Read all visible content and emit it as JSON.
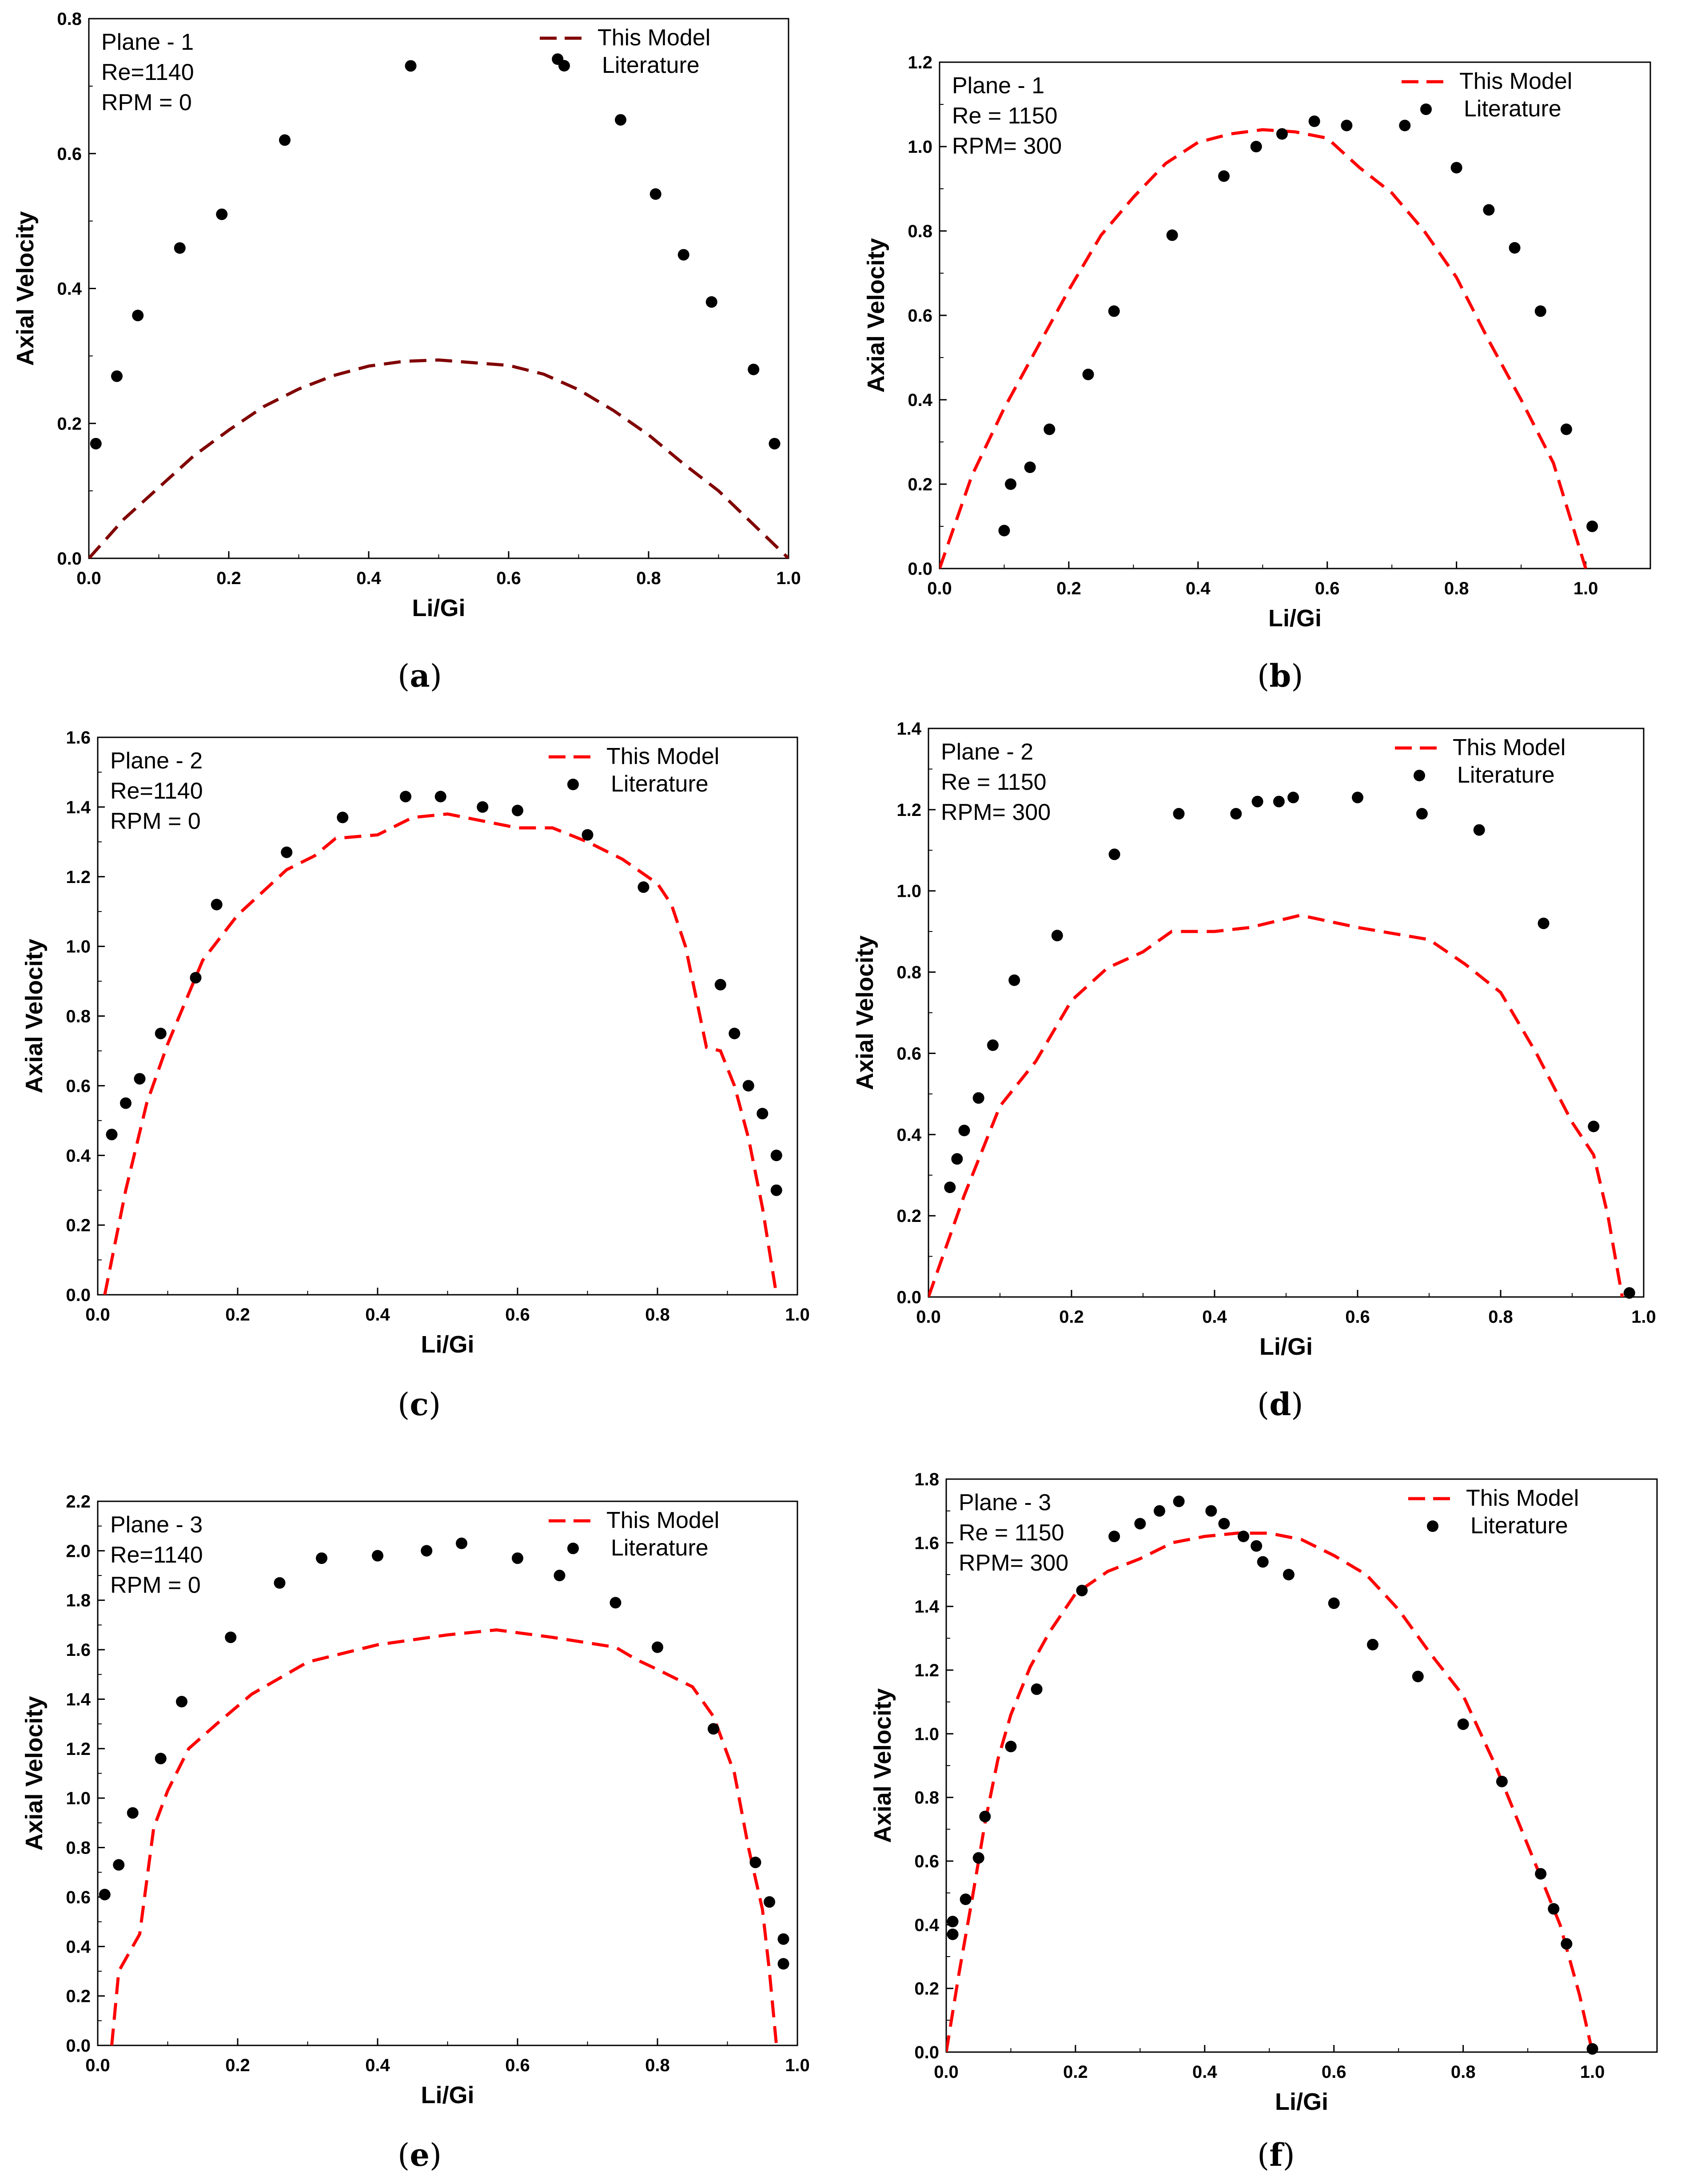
{
  "chart_data": [
    {
      "id": "a",
      "type": "scatter+line",
      "caption": "a",
      "annotation": [
        "Plane - 1",
        "Re=1140",
        "RPM = 0"
      ],
      "xlabel": "Li/Gi",
      "ylabel": "Axial Velocity",
      "xlim": [
        0,
        1.0
      ],
      "ylim": [
        0,
        0.8
      ],
      "xticks": [
        "0.0",
        "0.2",
        "0.4",
        "0.6",
        "0.8",
        "1.0"
      ],
      "yticks": [
        "0.0",
        "0.2",
        "0.4",
        "0.6",
        "0.8"
      ],
      "model_color": "#800000",
      "series": [
        {
          "name": "This Model",
          "kind": "dashed-line",
          "x": [
            0.0,
            0.05,
            0.1,
            0.15,
            0.2,
            0.25,
            0.3,
            0.35,
            0.4,
            0.45,
            0.5,
            0.55,
            0.6,
            0.65,
            0.7,
            0.75,
            0.8,
            0.85,
            0.9,
            0.95,
            1.0
          ],
          "y": [
            0.0,
            0.058,
            0.105,
            0.152,
            0.19,
            0.225,
            0.251,
            0.271,
            0.285,
            0.292,
            0.294,
            0.29,
            0.286,
            0.273,
            0.25,
            0.219,
            0.183,
            0.14,
            0.1,
            0.05,
            0.0
          ]
        },
        {
          "name": "Literature",
          "kind": "points",
          "x": [
            0.01,
            0.04,
            0.07,
            0.13,
            0.19,
            0.28,
            0.46,
            0.67,
            0.76,
            0.81,
            0.85,
            0.89,
            0.95,
            0.98
          ],
          "y": [
            0.17,
            0.27,
            0.36,
            0.46,
            0.51,
            0.62,
            0.73,
            0.74,
            0.65,
            0.54,
            0.45,
            0.38,
            0.28,
            0.17
          ]
        }
      ]
    },
    {
      "id": "b",
      "type": "scatter+line",
      "caption": "b",
      "annotation": [
        "Plane - 1",
        "Re = 1150",
        "RPM= 300"
      ],
      "xlabel": "Li/Gi",
      "ylabel": "Axial Velocity",
      "xlim": [
        0,
        1.1
      ],
      "ylim": [
        0,
        1.2
      ],
      "xticks": [
        "0.0",
        "0.2",
        "0.4",
        "0.6",
        "0.8",
        "1.0"
      ],
      "yticks": [
        "0.0",
        "0.2",
        "0.4",
        "0.6",
        "0.8",
        "1.0",
        "1.2"
      ],
      "model_color": "#ff0000",
      "series": [
        {
          "name": "This Model",
          "kind": "dashed-line",
          "x": [
            0.0,
            0.05,
            0.1,
            0.15,
            0.2,
            0.25,
            0.3,
            0.35,
            0.4,
            0.45,
            0.5,
            0.55,
            0.6,
            0.65,
            0.7,
            0.75,
            0.8,
            0.85,
            0.9,
            0.95,
            1.0
          ],
          "y": [
            0.0,
            0.22,
            0.38,
            0.52,
            0.66,
            0.79,
            0.88,
            0.96,
            1.01,
            1.03,
            1.04,
            1.035,
            1.02,
            0.95,
            0.89,
            0.8,
            0.69,
            0.54,
            0.4,
            0.25,
            0.0
          ]
        },
        {
          "name": "Literature",
          "kind": "points",
          "x": [
            0.1,
            0.11,
            0.14,
            0.17,
            0.23,
            0.27,
            0.36,
            0.44,
            0.49,
            0.53,
            0.58,
            0.63,
            0.72,
            0.8,
            0.85,
            0.89,
            0.93,
            0.97,
            1.01
          ],
          "y": [
            0.09,
            0.2,
            0.24,
            0.33,
            0.46,
            0.61,
            0.79,
            0.93,
            1.0,
            1.03,
            1.06,
            1.05,
            1.05,
            0.95,
            0.85,
            0.76,
            0.61,
            0.33,
            0.1
          ]
        }
      ]
    },
    {
      "id": "c",
      "type": "scatter+line",
      "caption": "c",
      "annotation": [
        "Plane - 2",
        "Re=1140",
        "RPM = 0"
      ],
      "xlabel": "Li/Gi",
      "ylabel": "Axial Velocity",
      "xlim": [
        0,
        1.0
      ],
      "ylim": [
        0,
        1.6
      ],
      "xticks": [
        "0.0",
        "0.2",
        "0.4",
        "0.6",
        "0.8",
        "1.0"
      ],
      "yticks": [
        "0.0",
        "0.2",
        "0.4",
        "0.6",
        "0.8",
        "1.0",
        "1.2",
        "1.4",
        "1.6"
      ],
      "model_color": "#ff0000",
      "series": [
        {
          "name": "This Model",
          "kind": "dashed-line",
          "x": [
            0.01,
            0.04,
            0.07,
            0.1,
            0.15,
            0.2,
            0.27,
            0.31,
            0.34,
            0.4,
            0.45,
            0.5,
            0.55,
            0.6,
            0.65,
            0.7,
            0.75,
            0.8,
            0.82,
            0.84,
            0.87,
            0.89,
            0.91,
            0.93,
            0.95,
            0.97
          ],
          "y": [
            0.0,
            0.3,
            0.55,
            0.72,
            0.96,
            1.09,
            1.22,
            1.26,
            1.31,
            1.32,
            1.37,
            1.38,
            1.36,
            1.34,
            1.34,
            1.3,
            1.25,
            1.18,
            1.12,
            1.0,
            0.71,
            0.7,
            0.6,
            0.45,
            0.25,
            0.0
          ]
        },
        {
          "name": "Literature",
          "kind": "points",
          "x": [
            0.02,
            0.04,
            0.06,
            0.09,
            0.14,
            0.17,
            0.27,
            0.35,
            0.44,
            0.49,
            0.55,
            0.6,
            0.7,
            0.78,
            0.89,
            0.91,
            0.93,
            0.95,
            0.97,
            0.97
          ],
          "y": [
            0.46,
            0.55,
            0.62,
            0.75,
            0.91,
            1.12,
            1.27,
            1.37,
            1.43,
            1.43,
            1.4,
            1.39,
            1.32,
            1.17,
            0.89,
            0.75,
            0.6,
            0.52,
            0.4,
            0.3
          ]
        }
      ]
    },
    {
      "id": "d",
      "type": "scatter+line",
      "caption": "d",
      "annotation": [
        "Plane - 2",
        "Re = 1150",
        "RPM= 300"
      ],
      "xlabel": "Li/Gi",
      "ylabel": "Axial Velocity",
      "xlim": [
        0,
        1.0
      ],
      "ylim": [
        0,
        1.4
      ],
      "xticks": [
        "0.0",
        "0.2",
        "0.4",
        "0.6",
        "0.8",
        "1.0"
      ],
      "yticks": [
        "0.0",
        "0.2",
        "0.4",
        "0.6",
        "0.8",
        "1.0",
        "1.2",
        "1.4"
      ],
      "model_color": "#ff0000",
      "series": [
        {
          "name": "This Model",
          "kind": "dashed-line",
          "x": [
            0.0,
            0.05,
            0.1,
            0.15,
            0.2,
            0.25,
            0.3,
            0.34,
            0.4,
            0.45,
            0.52,
            0.6,
            0.7,
            0.75,
            0.8,
            0.85,
            0.9,
            0.93,
            0.95,
            0.97
          ],
          "y": [
            0.0,
            0.25,
            0.47,
            0.58,
            0.73,
            0.81,
            0.85,
            0.9,
            0.9,
            0.91,
            0.94,
            0.91,
            0.88,
            0.82,
            0.75,
            0.6,
            0.43,
            0.35,
            0.2,
            0.0
          ]
        },
        {
          "name": "Literature",
          "kind": "points",
          "x": [
            0.03,
            0.04,
            0.05,
            0.07,
            0.09,
            0.12,
            0.18,
            0.26,
            0.35,
            0.43,
            0.46,
            0.49,
            0.51,
            0.6,
            0.69,
            0.77,
            0.86,
            0.93,
            0.98
          ],
          "y": [
            0.27,
            0.34,
            0.41,
            0.49,
            0.62,
            0.78,
            0.89,
            1.09,
            1.19,
            1.19,
            1.22,
            1.22,
            1.23,
            1.23,
            1.19,
            1.15,
            0.92,
            0.42,
            0.01
          ]
        }
      ]
    },
    {
      "id": "e",
      "type": "scatter+line",
      "caption": "e",
      "annotation": [
        "Plane - 3",
        "Re=1140",
        "RPM = 0"
      ],
      "xlabel": "Li/Gi",
      "ylabel": "Axial Velocity",
      "xlim": [
        0,
        1.0
      ],
      "ylim": [
        0,
        2.2
      ],
      "xticks": [
        "0.0",
        "0.2",
        "0.4",
        "0.6",
        "0.8",
        "1.0"
      ],
      "yticks": [
        "0.0",
        "0.2",
        "0.4",
        "0.6",
        "0.8",
        "1.0",
        "1.2",
        "1.4",
        "1.6",
        "1.8",
        "2.0",
        "2.2"
      ],
      "model_color": "#ff0000",
      "series": [
        {
          "name": "This Model",
          "kind": "dashed-line",
          "x": [
            0.02,
            0.03,
            0.06,
            0.08,
            0.1,
            0.13,
            0.17,
            0.22,
            0.3,
            0.4,
            0.5,
            0.57,
            0.65,
            0.74,
            0.77,
            0.8,
            0.85,
            0.88,
            0.91,
            0.93,
            0.95,
            0.96,
            0.97
          ],
          "y": [
            0.0,
            0.3,
            0.45,
            0.88,
            1.03,
            1.2,
            1.3,
            1.42,
            1.55,
            1.62,
            1.66,
            1.68,
            1.65,
            1.61,
            1.56,
            1.52,
            1.45,
            1.33,
            1.1,
            0.8,
            0.55,
            0.3,
            0.0
          ]
        },
        {
          "name": "Literature",
          "kind": "points",
          "x": [
            0.01,
            0.03,
            0.05,
            0.09,
            0.12,
            0.19,
            0.26,
            0.32,
            0.4,
            0.47,
            0.52,
            0.6,
            0.66,
            0.74,
            0.8,
            0.88,
            0.94,
            0.96,
            0.98,
            0.98
          ],
          "y": [
            0.61,
            0.73,
            0.94,
            1.16,
            1.39,
            1.65,
            1.87,
            1.97,
            1.98,
            2.0,
            2.03,
            1.97,
            1.9,
            1.79,
            1.61,
            1.28,
            0.74,
            0.58,
            0.43,
            0.33
          ]
        }
      ]
    },
    {
      "id": "f",
      "type": "scatter+line",
      "caption": "f",
      "annotation": [
        "Plane - 3",
        "Re = 1150",
        "RPM= 300"
      ],
      "xlabel": "Li/Gi",
      "ylabel": "Axial Velocity",
      "xlim": [
        0,
        1.1
      ],
      "ylim": [
        0,
        1.8
      ],
      "xticks": [
        "0.0",
        "0.2",
        "0.4",
        "0.6",
        "0.8",
        "1.0"
      ],
      "yticks": [
        "0.0",
        "0.2",
        "0.4",
        "0.6",
        "0.8",
        "1.0",
        "1.2",
        "1.4",
        "1.6",
        "1.8"
      ],
      "model_color": "#ff0000",
      "series": [
        {
          "name": "This Model",
          "kind": "dashed-line",
          "x": [
            0.0,
            0.02,
            0.04,
            0.06,
            0.08,
            0.1,
            0.13,
            0.16,
            0.2,
            0.25,
            0.3,
            0.35,
            0.4,
            0.45,
            0.5,
            0.55,
            0.6,
            0.65,
            0.7,
            0.75,
            0.8,
            0.85,
            0.9,
            0.95,
            0.98,
            1.0
          ],
          "y": [
            0.0,
            0.25,
            0.48,
            0.72,
            0.92,
            1.06,
            1.21,
            1.32,
            1.44,
            1.51,
            1.55,
            1.6,
            1.62,
            1.63,
            1.63,
            1.61,
            1.56,
            1.5,
            1.39,
            1.25,
            1.12,
            0.9,
            0.65,
            0.4,
            0.18,
            0.0
          ]
        },
        {
          "name": "Literature",
          "kind": "points",
          "x": [
            0.01,
            0.01,
            0.03,
            0.05,
            0.06,
            0.1,
            0.14,
            0.21,
            0.26,
            0.3,
            0.33,
            0.36,
            0.41,
            0.43,
            0.46,
            0.48,
            0.49,
            0.53,
            0.6,
            0.66,
            0.73,
            0.8,
            0.86,
            0.92,
            0.94,
            0.96,
            1.0
          ],
          "y": [
            0.37,
            0.41,
            0.48,
            0.61,
            0.74,
            0.96,
            1.14,
            1.45,
            1.62,
            1.66,
            1.7,
            1.73,
            1.7,
            1.66,
            1.62,
            1.59,
            1.54,
            1.5,
            1.41,
            1.28,
            1.18,
            1.03,
            0.85,
            0.56,
            0.45,
            0.34,
            0.01
          ]
        }
      ]
    }
  ]
}
